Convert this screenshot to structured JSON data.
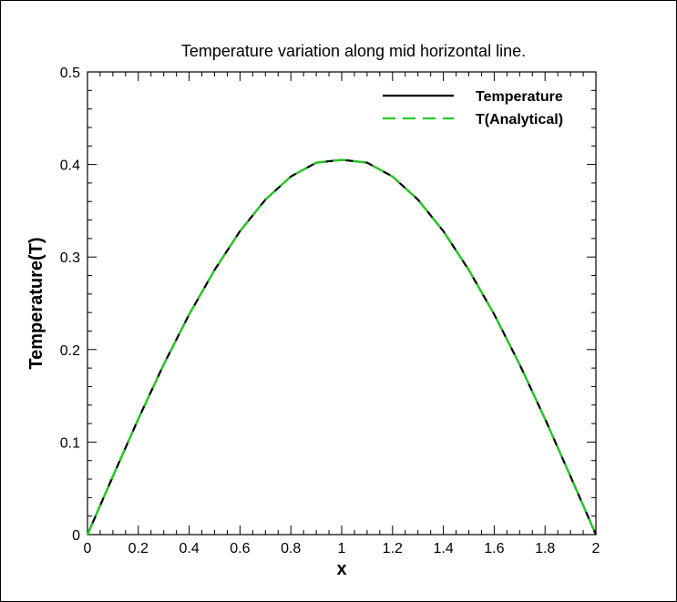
{
  "chart_data": {
    "type": "line",
    "title": "Temperature variation along mid horizontal line.",
    "xlabel": "x",
    "ylabel": "Temperature(T)",
    "xlim": [
      0,
      2
    ],
    "ylim": [
      0,
      0.5
    ],
    "x_ticks": [
      "0",
      "0.2",
      "0.4",
      "0.6",
      "0.8",
      "1",
      "1.2",
      "1.4",
      "1.6",
      "1.8",
      "2"
    ],
    "y_ticks": [
      "0",
      "0.1",
      "0.2",
      "0.3",
      "0.4",
      "0.5"
    ],
    "grid": false,
    "legend": "top-right",
    "x": [
      0,
      0.1,
      0.2,
      0.3,
      0.4,
      0.5,
      0.6,
      0.7,
      0.8,
      0.9,
      1.0,
      1.1,
      1.2,
      1.3,
      1.4,
      1.5,
      1.6,
      1.7,
      1.8,
      1.9,
      2.0
    ],
    "series": [
      {
        "name": "Temperature",
        "color": "#000000",
        "style": "solid",
        "values": [
          0,
          0.063,
          0.125,
          0.184,
          0.238,
          0.286,
          0.328,
          0.362,
          0.387,
          0.402,
          0.405,
          0.402,
          0.387,
          0.362,
          0.328,
          0.286,
          0.238,
          0.184,
          0.125,
          0.063,
          0
        ]
      },
      {
        "name": "T(Analytical)",
        "color": "#22cc22",
        "style": "dashed",
        "values": [
          0,
          0.063,
          0.125,
          0.184,
          0.238,
          0.286,
          0.328,
          0.362,
          0.387,
          0.402,
          0.405,
          0.402,
          0.387,
          0.362,
          0.328,
          0.286,
          0.238,
          0.184,
          0.125,
          0.063,
          0
        ]
      }
    ]
  }
}
